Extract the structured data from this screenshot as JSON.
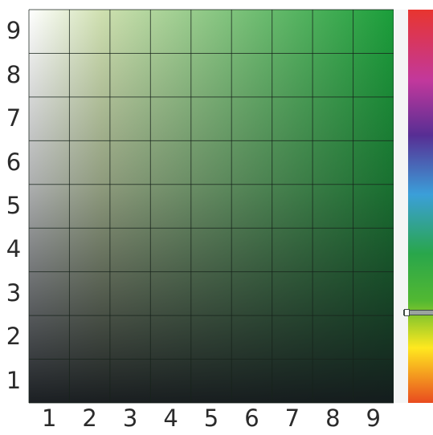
{
  "color_picker": {
    "grid": {
      "divisions": 9,
      "line_color": "#17231b",
      "hue_color": "#1a9e3a"
    },
    "y_axis_labels": [
      "9",
      "8",
      "7",
      "6",
      "5",
      "4",
      "3",
      "2",
      "1"
    ],
    "x_axis_labels": [
      "1",
      "2",
      "3",
      "4",
      "5",
      "6",
      "7",
      "8",
      "9"
    ]
  },
  "hue_slider": {
    "colors_top_to_bottom": [
      "#e8352f",
      "#c2389c",
      "#572e94",
      "#3b9fd9",
      "#29a64b",
      "#52b832",
      "#ffe81f",
      "#e94b1f"
    ],
    "selected_position_fraction": 0.769
  }
}
